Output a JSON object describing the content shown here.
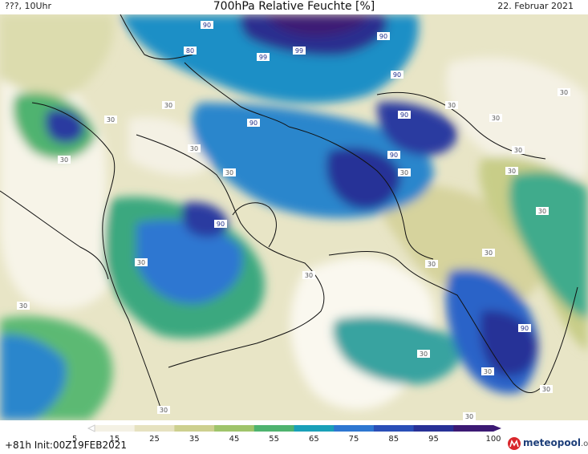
{
  "header": {
    "left_label": "???, 10Uhr",
    "title": "700hPa Relative Feuchte [%]",
    "date": "22. Februar 2021"
  },
  "footer": {
    "run_info": "+81h Init:00Z19FEB2021",
    "brand_name": "meteopool",
    "brand_tld": ".org"
  },
  "legend": {
    "ticks": [
      "5",
      "15",
      "25",
      "35",
      "45",
      "55",
      "65",
      "75",
      "85",
      "95",
      "100"
    ],
    "colors": [
      "#ffffff",
      "#f4f1e4",
      "#e6e2c0",
      "#cdd08f",
      "#9fc46b",
      "#4fb36f",
      "#1aa0b8",
      "#2e77d1",
      "#2a4fb7",
      "#283197",
      "#3c1a74"
    ]
  },
  "map_labels": [
    "90",
    "80",
    "99",
    "99",
    "90",
    "90",
    "90",
    "30",
    "30",
    "30",
    "30",
    "30",
    "30",
    "90",
    "30",
    "30",
    "30",
    "30",
    "30",
    "30",
    "30",
    "90",
    "30",
    "90",
    "30",
    "30",
    "30",
    "30",
    "90",
    "30",
    "30",
    "30",
    "30"
  ],
  "colors": {
    "land_dry": "#f4f1e4",
    "moist_high": "#283197",
    "border": "#111111"
  }
}
